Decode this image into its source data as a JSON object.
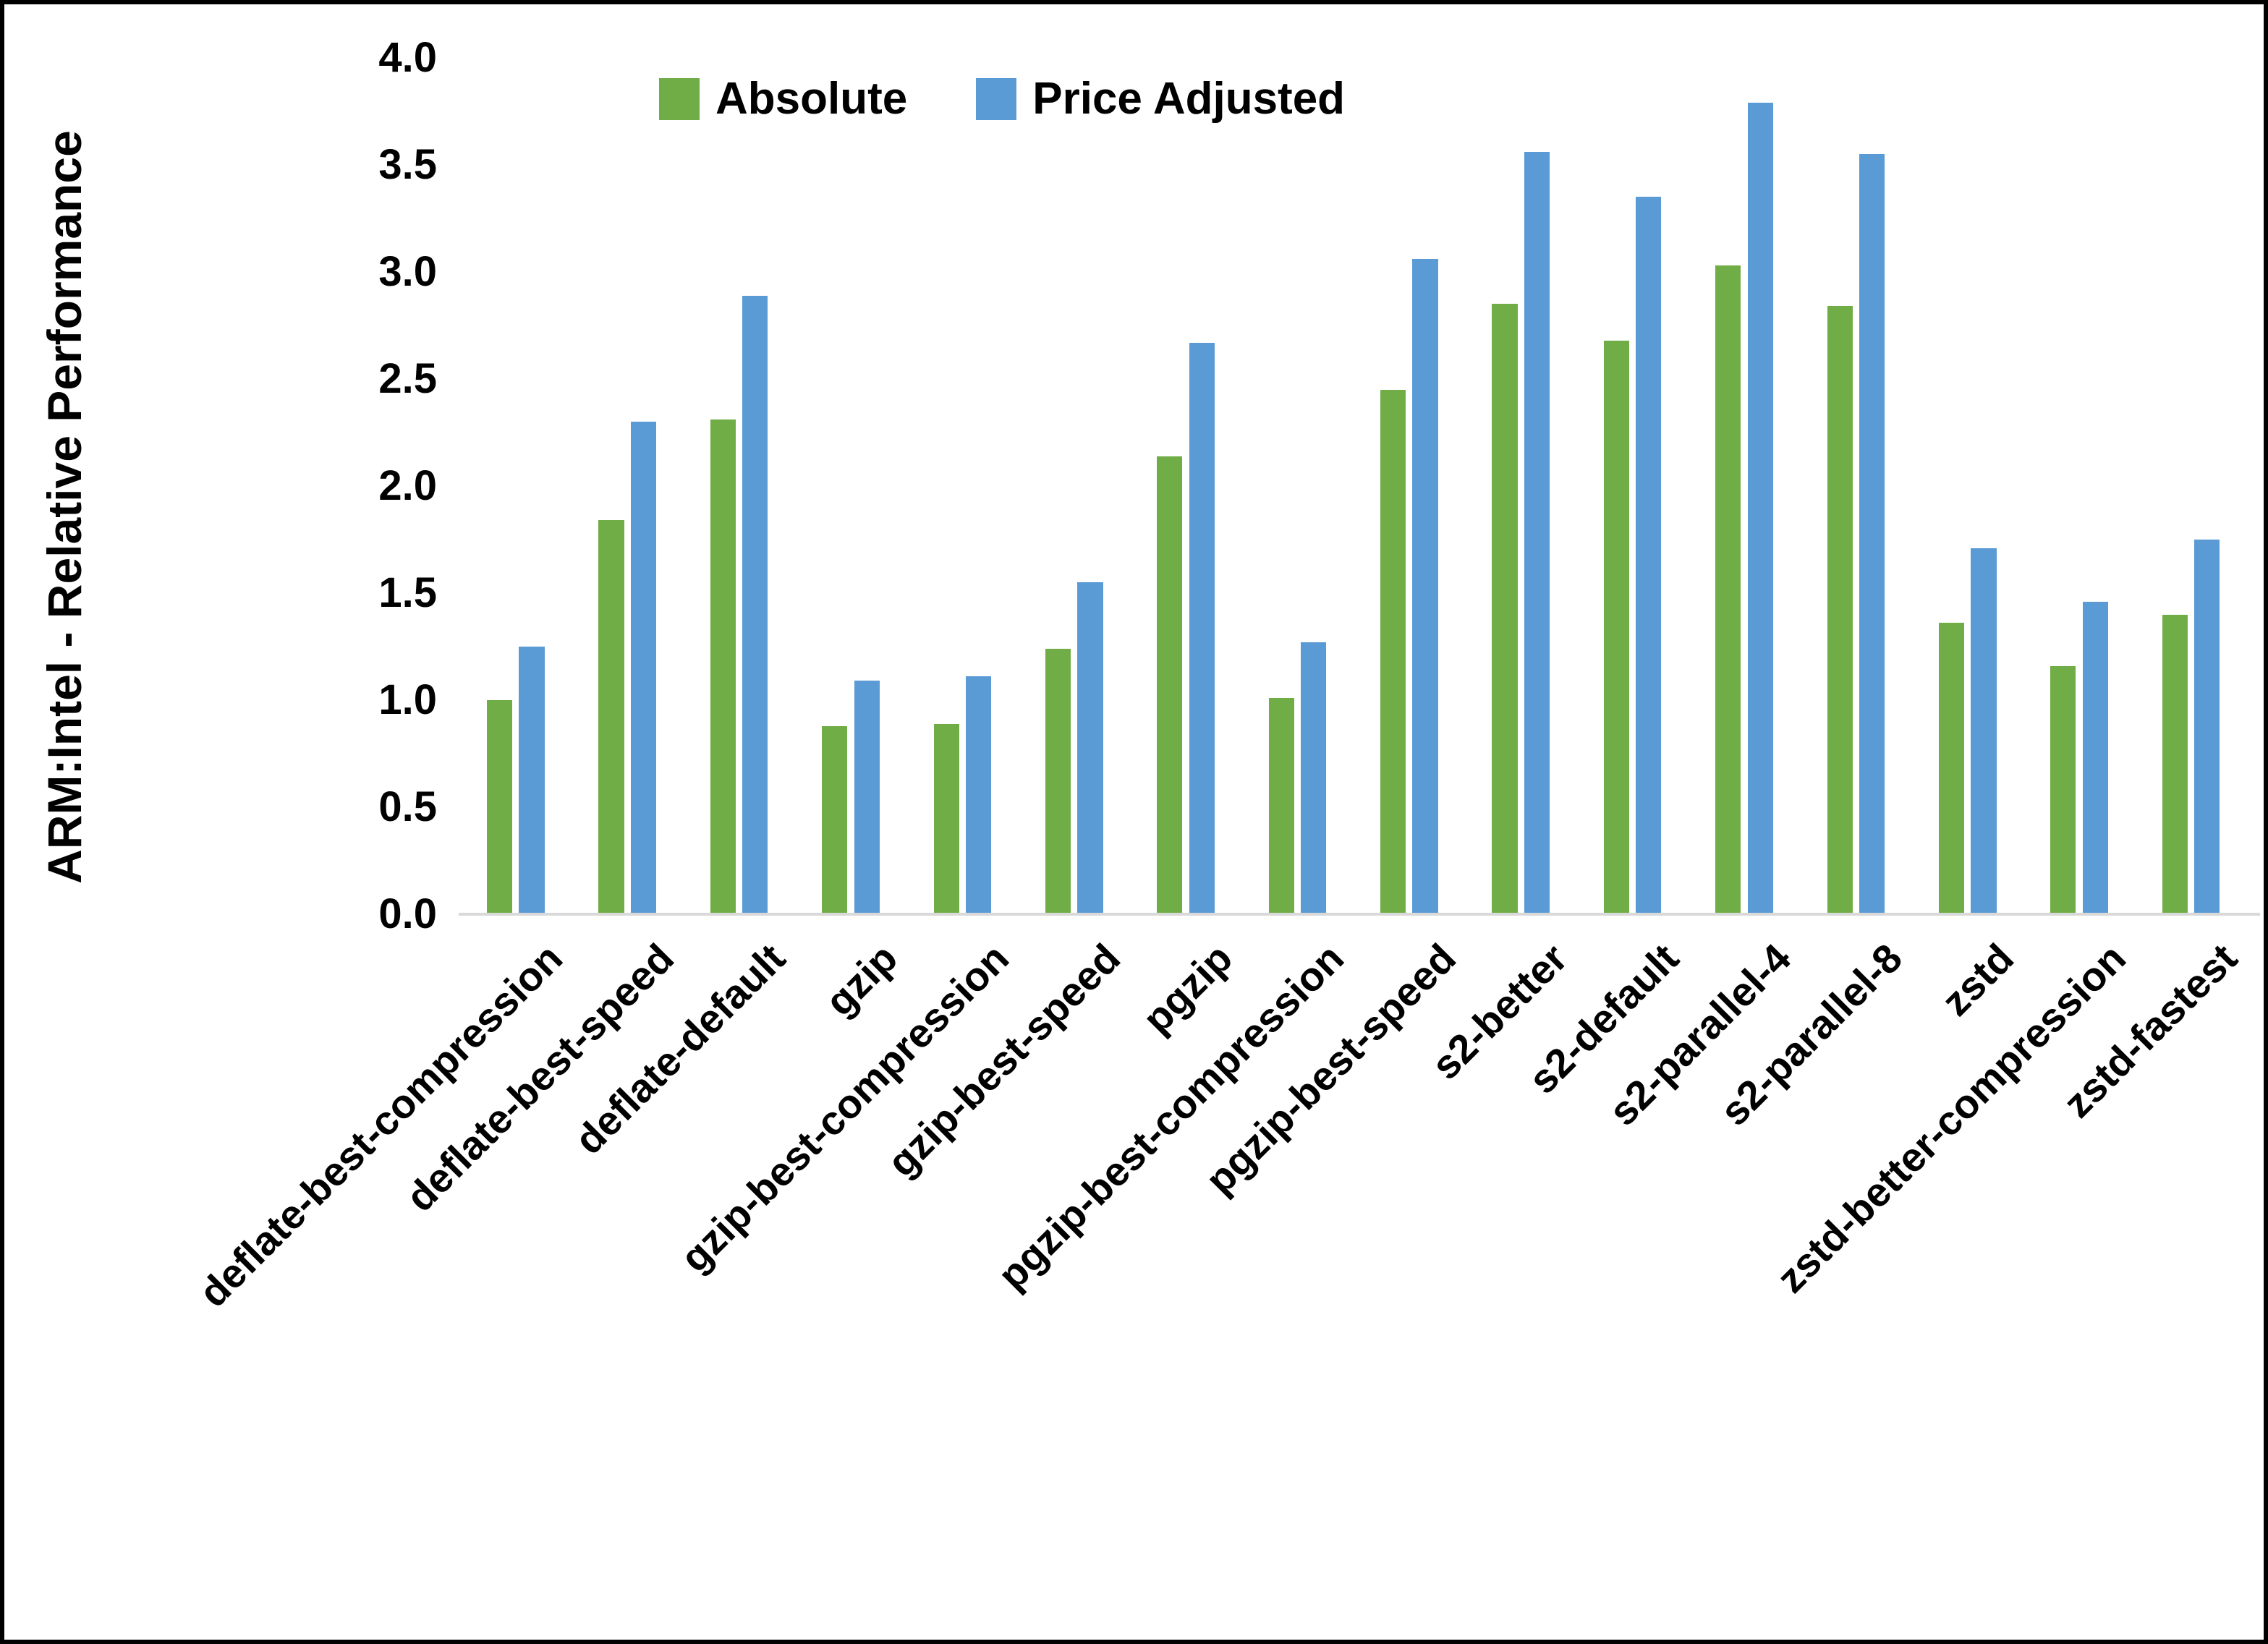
{
  "chart_data": {
    "type": "bar",
    "title": "",
    "ylabel": "ARM:Intel - Relative Performance",
    "xlabel": "",
    "categories": [
      "deflate-best-compression",
      "deflate-best-speed",
      "deflate-default",
      "gzip",
      "gzip-best-compression",
      "gzip-best-speed",
      "pgzip",
      "pgzip-best-compression",
      "pgzip-best-speed",
      "s2-better",
      "s2-default",
      "s2-parallel-4",
      "s2-parallel-8",
      "zstd",
      "zstd-better-compression",
      "zstd-fastest"
    ],
    "series": [
      {
        "name": "Absolute",
        "color": "#70ad47",
        "values": [
          1.0,
          1.84,
          2.31,
          0.88,
          0.89,
          1.24,
          2.14,
          1.01,
          2.45,
          2.85,
          2.68,
          3.03,
          2.84,
          1.36,
          1.16,
          1.4
        ]
      },
      {
        "name": "Price Adjusted",
        "color": "#5b9bd5",
        "values": [
          1.25,
          2.3,
          2.89,
          1.09,
          1.11,
          1.55,
          2.67,
          1.27,
          3.06,
          3.56,
          3.35,
          3.79,
          3.55,
          1.71,
          1.46,
          1.75
        ]
      }
    ],
    "ylim": [
      0.0,
      4.0
    ],
    "ytick_step": 0.5,
    "ytick_labels": [
      "0.0",
      "0.5",
      "1.0",
      "1.5",
      "2.0",
      "2.5",
      "3.0",
      "3.5",
      "4.0"
    ],
    "grid": false,
    "legend_position": "top-center"
  },
  "colors": {
    "axis_line": "#d9d9d9",
    "text": "#000000",
    "frame_border": "#000000",
    "background": "#ffffff"
  }
}
